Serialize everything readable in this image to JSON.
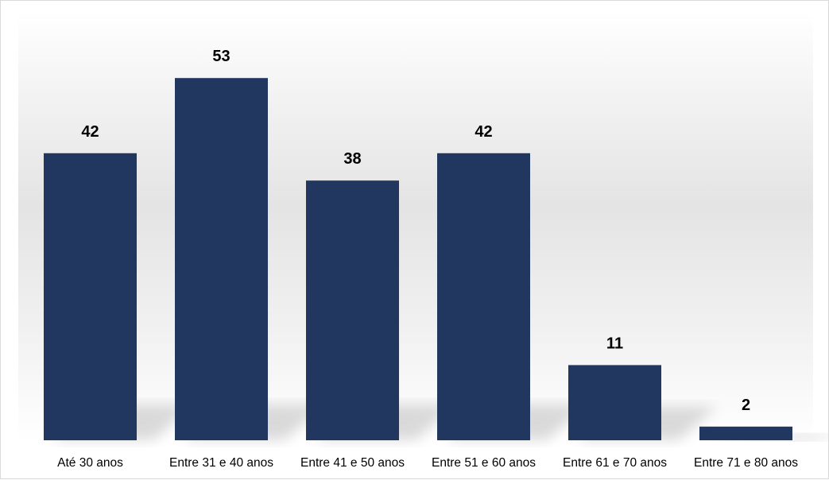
{
  "chart_data": {
    "type": "bar",
    "categories": [
      "Até 30 anos",
      "Entre 31 e 40 anos",
      "Entre 41 e 50 anos",
      "Entre 51 e 60 anos",
      "Entre 61 e 70 anos",
      "Entre 71 e 80 anos"
    ],
    "values": [
      42,
      53,
      38,
      42,
      11,
      2
    ],
    "ylim": [
      0,
      60
    ],
    "grid": false,
    "data_labels": true,
    "colors": {
      "bar": "#213760",
      "shadow": "#bdbdbd"
    }
  }
}
